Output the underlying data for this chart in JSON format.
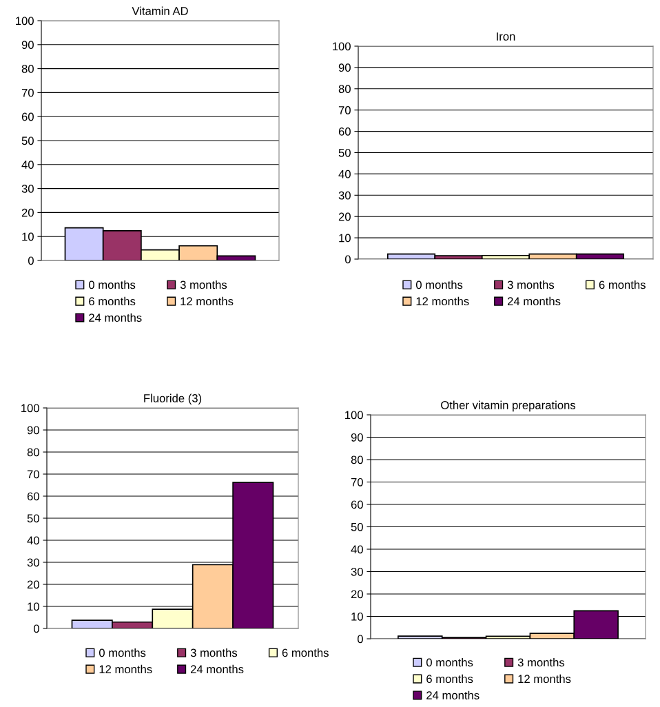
{
  "chart_data": [
    {
      "type": "bar",
      "title": "Vitamin AD",
      "categories": [
        null
      ],
      "ylim": [
        0,
        100
      ],
      "yticks": [
        0,
        10,
        20,
        30,
        40,
        50,
        60,
        70,
        80,
        90,
        100
      ],
      "grid": "y",
      "legend": "bottom",
      "series": [
        {
          "name": "0 months",
          "color": "#ccccff",
          "values": [
            13.6
          ]
        },
        {
          "name": "3 months",
          "color": "#993366",
          "values": [
            12.4
          ]
        },
        {
          "name": "6 months",
          "color": "#ffffcc",
          "values": [
            4.4
          ]
        },
        {
          "name": "12 months",
          "color": "#ffcc99",
          "values": [
            6.1
          ]
        },
        {
          "name": "24 months",
          "color": "#660066",
          "values": [
            1.9
          ]
        }
      ]
    },
    {
      "type": "bar",
      "title": "Iron",
      "categories": [
        null
      ],
      "ylim": [
        0,
        100
      ],
      "yticks": [
        0,
        10,
        20,
        30,
        40,
        50,
        60,
        70,
        80,
        90,
        100
      ],
      "grid": "y",
      "legend": "bottom",
      "series": [
        {
          "name": "0 months",
          "color": "#ccccff",
          "values": [
            2.4
          ]
        },
        {
          "name": "3 months",
          "color": "#993366",
          "values": [
            1.6
          ]
        },
        {
          "name": "6 months",
          "color": "#ffffcc",
          "values": [
            1.7
          ]
        },
        {
          "name": "12 months",
          "color": "#ffcc99",
          "values": [
            2.4
          ]
        },
        {
          "name": "24 months",
          "color": "#660066",
          "values": [
            2.4
          ]
        }
      ]
    },
    {
      "type": "bar",
      "title": "Fluoride (3)",
      "categories": [
        null
      ],
      "ylim": [
        0,
        100
      ],
      "yticks": [
        0,
        10,
        20,
        30,
        40,
        50,
        60,
        70,
        80,
        90,
        100
      ],
      "grid": "y",
      "legend": "bottom",
      "series": [
        {
          "name": "0 months",
          "color": "#ccccff",
          "values": [
            3.7
          ]
        },
        {
          "name": "3 months",
          "color": "#993366",
          "values": [
            2.9
          ]
        },
        {
          "name": "6 months",
          "color": "#ffffcc",
          "values": [
            8.7
          ]
        },
        {
          "name": "12 months",
          "color": "#ffcc99",
          "values": [
            28.9
          ]
        },
        {
          "name": "24 months",
          "color": "#660066",
          "values": [
            66.2
          ]
        }
      ]
    },
    {
      "type": "bar",
      "title": "Other vitamin preparations",
      "categories": [
        null
      ],
      "ylim": [
        0,
        100
      ],
      "yticks": [
        0,
        10,
        20,
        30,
        40,
        50,
        60,
        70,
        80,
        90,
        100
      ],
      "grid": "y",
      "legend": "bottom",
      "series": [
        {
          "name": "0 months",
          "color": "#ccccff",
          "values": [
            1.2
          ]
        },
        {
          "name": "3 months",
          "color": "#993366",
          "values": [
            0.6
          ]
        },
        {
          "name": "6 months",
          "color": "#ffffcc",
          "values": [
            1.1
          ]
        },
        {
          "name": "12 months",
          "color": "#ffcc99",
          "values": [
            2.4
          ]
        },
        {
          "name": "24 months",
          "color": "#660066",
          "values": [
            12.5
          ]
        }
      ]
    }
  ]
}
